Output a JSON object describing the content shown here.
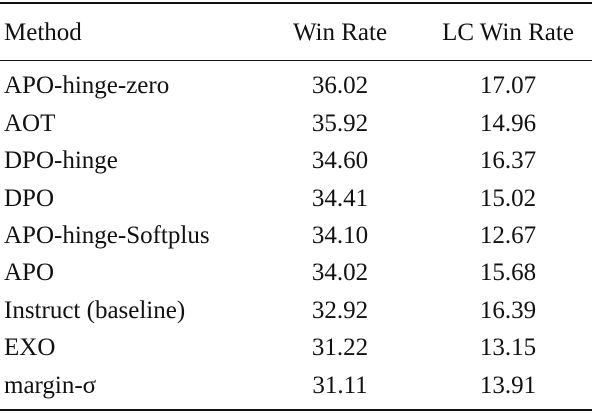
{
  "table": {
    "headers": {
      "method": "Method",
      "win_rate": "Win Rate",
      "lc_win_rate": "LC Win Rate"
    },
    "rows": [
      {
        "method": "APO-hinge-zero",
        "win_rate": "36.02",
        "lc_win_rate": "17.07"
      },
      {
        "method": "AOT",
        "win_rate": "35.92",
        "lc_win_rate": "14.96"
      },
      {
        "method": "DPO-hinge",
        "win_rate": "34.60",
        "lc_win_rate": "16.37"
      },
      {
        "method": "DPO",
        "win_rate": "34.41",
        "lc_win_rate": "15.02"
      },
      {
        "method": "APO-hinge-Softplus",
        "win_rate": "34.10",
        "lc_win_rate": "12.67"
      },
      {
        "method": "APO",
        "win_rate": "34.02",
        "lc_win_rate": "15.68"
      },
      {
        "method": "Instruct (baseline)",
        "win_rate": "32.92",
        "lc_win_rate": "16.39"
      },
      {
        "method": "EXO",
        "win_rate": "31.22",
        "lc_win_rate": "13.15"
      },
      {
        "method": "margin-σ",
        "win_rate": "31.11",
        "lc_win_rate": "13.91"
      }
    ]
  }
}
